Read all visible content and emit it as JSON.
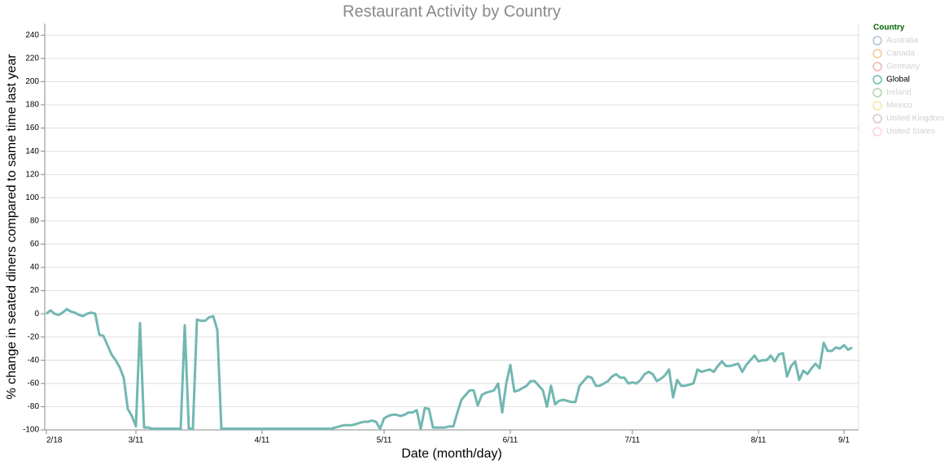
{
  "chart_data": {
    "type": "line",
    "title": "Restaurant Activity by Country",
    "x_label": "Date (month/day)",
    "y_label": "% change in seated diners compared to same time last year",
    "categories": [
      "2/18",
      "2/19",
      "2/20",
      "2/21",
      "2/22",
      "2/23",
      "2/24",
      "2/25",
      "2/26",
      "2/27",
      "2/28",
      "2/29",
      "3/1",
      "3/2",
      "3/3",
      "3/4",
      "3/5",
      "3/6",
      "3/7",
      "3/8",
      "3/9",
      "3/10",
      "3/11",
      "3/12",
      "3/13",
      "3/14",
      "3/15",
      "3/16",
      "3/17",
      "3/18",
      "3/19",
      "3/20",
      "3/21",
      "3/22",
      "3/23",
      "3/24",
      "3/25",
      "3/26",
      "3/27",
      "3/28",
      "3/29",
      "3/30",
      "3/31",
      "4/1",
      "4/2",
      "4/3",
      "4/4",
      "4/5",
      "4/6",
      "4/7",
      "4/8",
      "4/9",
      "4/10",
      "4/11",
      "4/12",
      "4/13",
      "4/14",
      "4/15",
      "4/16",
      "4/17",
      "4/18",
      "4/19",
      "4/20",
      "4/21",
      "4/22",
      "4/23",
      "4/24",
      "4/25",
      "4/26",
      "4/27",
      "4/28",
      "4/29",
      "4/30",
      "5/1",
      "5/2",
      "5/3",
      "5/4",
      "5/5",
      "5/6",
      "5/7",
      "5/8",
      "5/9",
      "5/10",
      "5/11",
      "5/12",
      "5/13",
      "5/14",
      "5/15",
      "5/16",
      "5/17",
      "5/18",
      "5/19",
      "5/20",
      "5/21",
      "5/22",
      "5/23",
      "5/24",
      "5/25",
      "5/26",
      "5/27",
      "5/28",
      "5/29",
      "5/30",
      "5/31",
      "6/1",
      "6/2",
      "6/3",
      "6/4",
      "6/5",
      "6/6",
      "6/7",
      "6/8",
      "6/9",
      "6/10",
      "6/11",
      "6/12",
      "6/13",
      "6/14",
      "6/15",
      "6/16",
      "6/17",
      "6/18",
      "6/19",
      "6/20",
      "6/21",
      "6/22",
      "6/23",
      "6/24",
      "6/25",
      "6/26",
      "6/27",
      "6/28",
      "6/29",
      "6/30",
      "7/1",
      "7/2",
      "7/3",
      "7/4",
      "7/5",
      "7/6",
      "7/7",
      "7/8",
      "7/9",
      "7/10",
      "7/11",
      "7/12",
      "7/13",
      "7/14",
      "7/15",
      "7/16",
      "7/17",
      "7/18",
      "7/19",
      "7/20",
      "7/21",
      "7/22",
      "7/23",
      "7/24",
      "7/25",
      "7/26",
      "7/27",
      "7/28",
      "7/29",
      "7/30",
      "7/31",
      "8/1",
      "8/2",
      "8/3",
      "8/4",
      "8/5",
      "8/6",
      "8/7",
      "8/8",
      "8/9",
      "8/10",
      "8/11",
      "8/12",
      "8/13",
      "8/14",
      "8/15",
      "8/16",
      "8/17",
      "8/18",
      "8/19",
      "8/20",
      "8/21",
      "8/22",
      "8/23",
      "8/24",
      "8/25",
      "8/26",
      "8/27",
      "8/28",
      "8/29",
      "8/30",
      "8/31",
      "9/1",
      "9/2",
      "9/3"
    ],
    "series": [
      {
        "name": "Global",
        "color": "#72b7b2",
        "values": [
          0,
          3,
          0,
          -1,
          1,
          4,
          2,
          1,
          -1,
          -2,
          0,
          1,
          0,
          -18,
          -19,
          -27,
          -35,
          -40,
          -46,
          -55,
          -82,
          -88,
          -97,
          -8,
          -98,
          -98,
          -99,
          -99,
          -99,
          -99,
          -99,
          -99,
          -99,
          -99,
          -10,
          -99,
          -99,
          -5,
          -6,
          -6,
          -3,
          -2,
          -14,
          -99,
          -99,
          -99,
          -99,
          -99,
          -99,
          -99,
          -99,
          -99,
          -99,
          -99,
          -99,
          -99,
          -99,
          -99,
          -99,
          -99,
          -99,
          -99,
          -99,
          -99,
          -99,
          -99,
          -99,
          -99,
          -99,
          -99,
          -99,
          -98,
          -97,
          -96,
          -96,
          -96,
          -95,
          -94,
          -93,
          -93,
          -92,
          -93,
          -99,
          -90,
          -88,
          -87,
          -87,
          -88,
          -87,
          -85,
          -85,
          -83,
          -99,
          -81,
          -82,
          -98,
          -98,
          -98,
          -98,
          -97,
          -97,
          -85,
          -74,
          -70,
          -66,
          -66,
          -79,
          -70,
          -68,
          -67,
          -66,
          -60,
          -85,
          -60,
          -44,
          -67,
          -66,
          -64,
          -62,
          -58,
          -58,
          -62,
          -66,
          -80,
          -62,
          -78,
          -75,
          -74,
          -75,
          -76,
          -76,
          -62,
          -58,
          -54,
          -55,
          -62,
          -62,
          -60,
          -58,
          -54,
          -52,
          -55,
          -55,
          -60,
          -59,
          -60,
          -57,
          -52,
          -50,
          -52,
          -58,
          -56,
          -53,
          -48,
          -72,
          -57,
          -62,
          -62,
          -61,
          -60,
          -48,
          -50,
          -49,
          -48,
          -50,
          -45,
          -41,
          -45,
          -45,
          -44,
          -43,
          -50,
          -44,
          -40,
          -36,
          -41,
          -40,
          -40,
          -36,
          -41,
          -35,
          -34,
          -54,
          -45,
          -41,
          -57,
          -49,
          -52,
          -47,
          -43,
          -47,
          -25,
          -32,
          -32,
          -29,
          -30,
          -27,
          -31,
          -29
        ]
      }
    ],
    "xticks": [
      "2/18",
      "3/11",
      "4/11",
      "5/11",
      "6/11",
      "7/11",
      "8/11",
      "9/1"
    ],
    "ylim": [
      -100,
      250
    ],
    "yticks": [
      -100,
      -80,
      -60,
      -40,
      -20,
      0,
      20,
      40,
      60,
      80,
      100,
      120,
      140,
      160,
      180,
      200,
      220,
      240
    ],
    "grid": true,
    "legend": {
      "title": "Country",
      "position": "right",
      "items": [
        {
          "name": "Australia",
          "color": "#4c78a8",
          "selected": false
        },
        {
          "name": "Canada",
          "color": "#f58518",
          "selected": false
        },
        {
          "name": "Germany",
          "color": "#e45756",
          "selected": false
        },
        {
          "name": "Global",
          "color": "#72b7b2",
          "selected": true
        },
        {
          "name": "Ireland",
          "color": "#54a24b",
          "selected": false
        },
        {
          "name": "Mexico",
          "color": "#eeca3b",
          "selected": false
        },
        {
          "name": "United Kingdom",
          "color": "#b279a2",
          "selected": false
        },
        {
          "name": "United States",
          "color": "#ff9da6",
          "selected": false
        }
      ]
    }
  }
}
